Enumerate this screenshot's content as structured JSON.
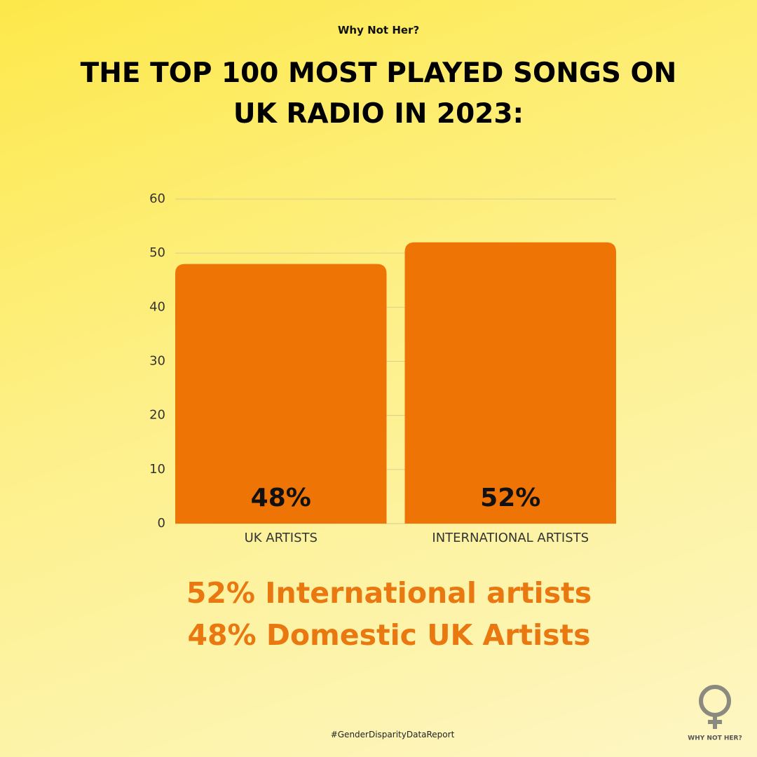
{
  "chart_data": {
    "type": "bar",
    "subtitle": "Why Not Her?",
    "title": "THE TOP 100 MOST PLAYED SONGS ON UK RADIO IN 2023:",
    "categories": [
      "UK ARTISTS",
      "INTERNATIONAL ARTISTS"
    ],
    "values": [
      48,
      52
    ],
    "value_labels": [
      "48%",
      "52%"
    ],
    "color": "#ef7406",
    "ylim": [
      0,
      60
    ],
    "yticks": [
      0,
      10,
      20,
      30,
      40,
      50,
      60
    ],
    "grid": true,
    "annotations": [
      "52% International artists",
      "48% Domestic UK Artists"
    ],
    "footer": "#GenderDisparityDataReport",
    "logo_text": "WHY NOT HER?"
  }
}
